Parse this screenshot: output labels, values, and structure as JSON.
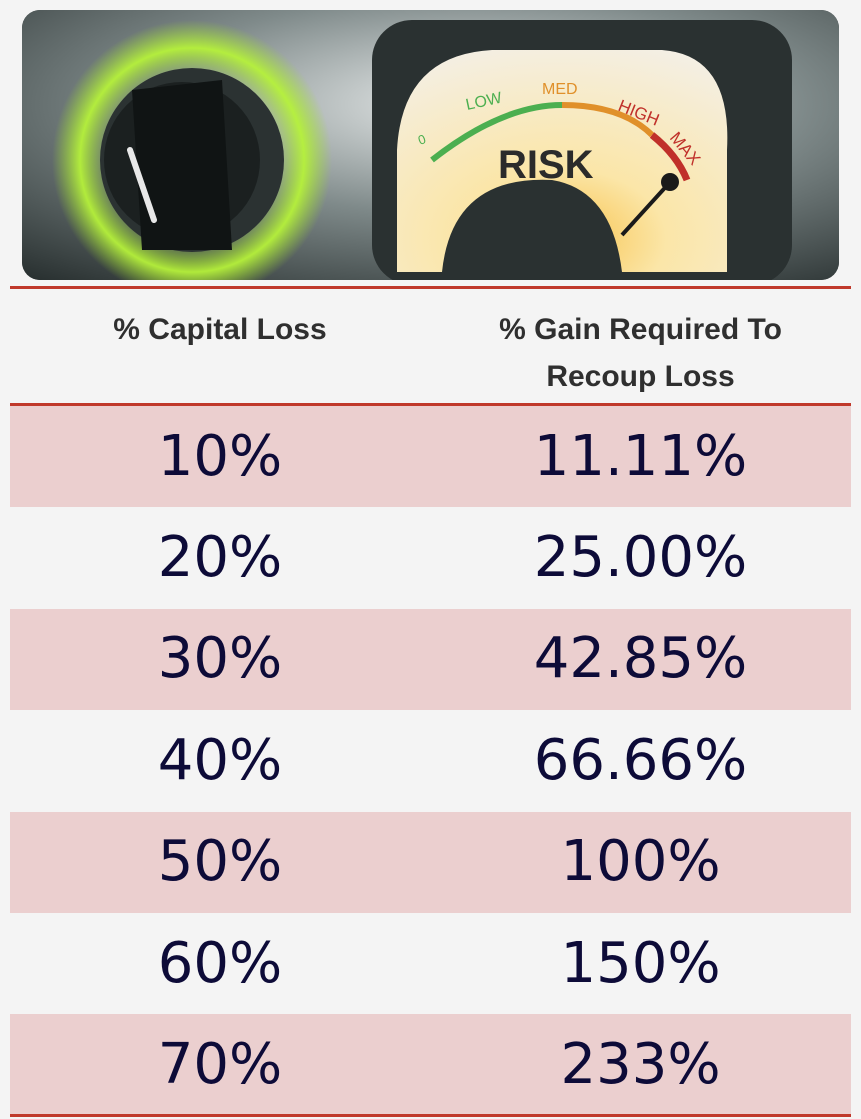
{
  "hero": {
    "gauge_word": "RISK",
    "gauge_labels": [
      "0",
      "LOW",
      "MED",
      "HIGH",
      "MAX"
    ],
    "colors": {
      "low": "#4caf50",
      "med": "#e0902a",
      "high": "#c0302a",
      "knob_glow": "#9bdc2a"
    }
  },
  "chart_data": {
    "type": "table",
    "columns": [
      "% Capital Loss",
      "% Gain Required To Recoup Loss"
    ],
    "rows": [
      [
        "10%",
        "11.11%"
      ],
      [
        "20%",
        "25.00%"
      ],
      [
        "30%",
        "42.85%"
      ],
      [
        "40%",
        "66.66%"
      ],
      [
        "50%",
        "100%"
      ],
      [
        "60%",
        "150%"
      ],
      [
        "70%",
        "233%"
      ]
    ],
    "header_line2": "Recoup Loss",
    "header_line1": "% Gain Required To"
  },
  "colors": {
    "accent_rule": "#c0392b",
    "shaded_row": "#ebcfcf",
    "value_text": "#0d0b38"
  }
}
